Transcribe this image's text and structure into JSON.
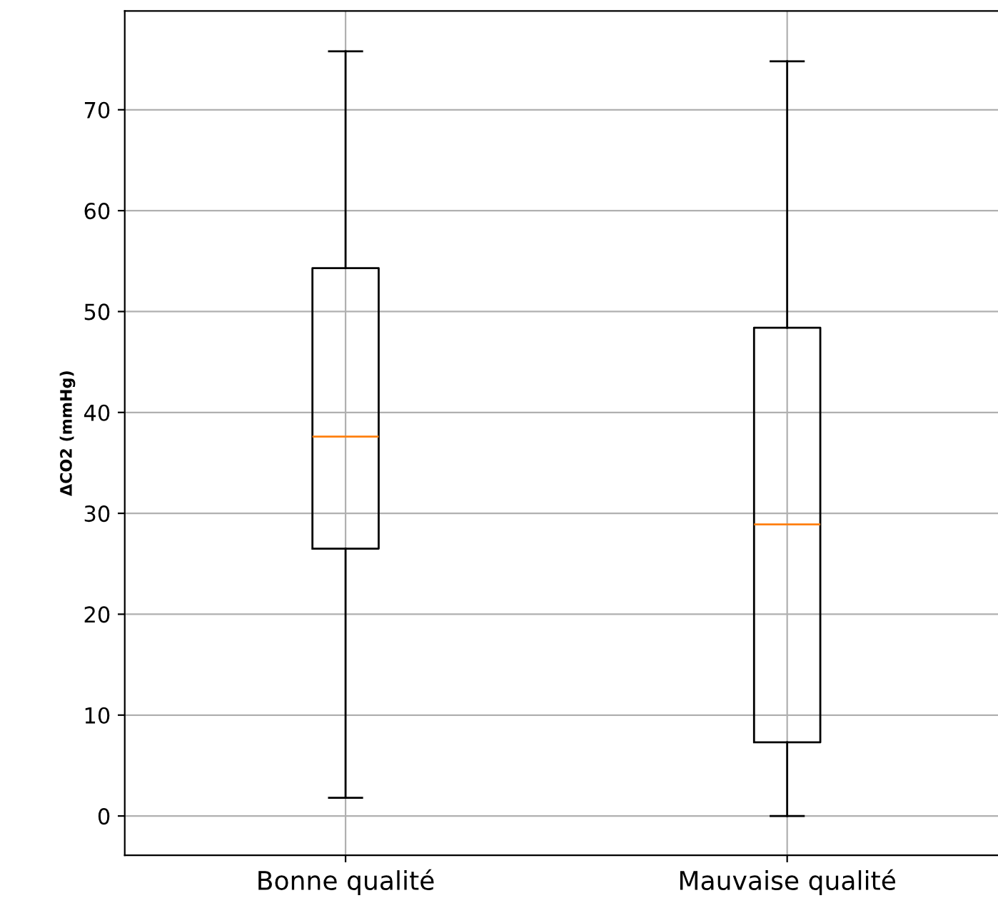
{
  "chart_data": {
    "type": "box",
    "ylabel": "ΔCO2 (mmHg)",
    "categories": [
      "Bonne qualité",
      "Mauvaise qualité"
    ],
    "boxes": [
      {
        "low": 1.8,
        "q1": 26.5,
        "median": 37.6,
        "q3": 54.3,
        "high": 75.8
      },
      {
        "low": 0,
        "q1": 7.3,
        "median": 28.9,
        "q3": 48.4,
        "high": 74.8
      }
    ],
    "ylim": [
      -3.9,
      79.8
    ],
    "yticks": [
      0,
      10,
      20,
      30,
      40,
      50,
      60,
      70
    ],
    "grid": true
  }
}
